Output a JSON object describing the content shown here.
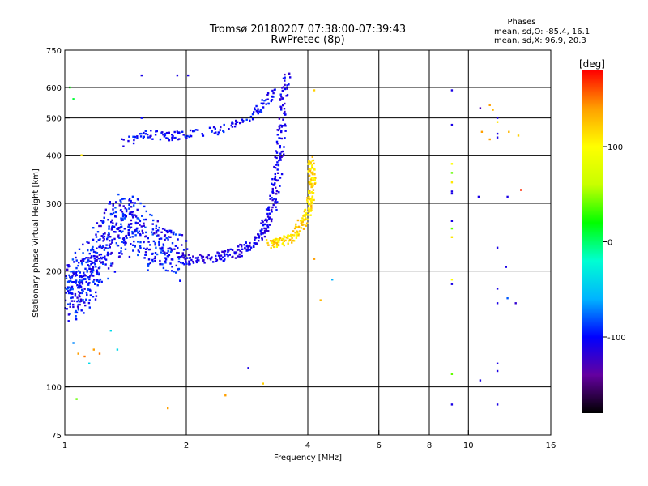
{
  "chart_data": {
    "type": "scatter",
    "title": "Tromsø 20180207 07:38:00-07:39:43",
    "subtitle": "RwPretec (8p)",
    "xlabel": "Frequency [MHz]",
    "ylabel": "Stationary phase Virtual Height [km]",
    "xscale": "log",
    "yscale": "log",
    "xlim": [
      1,
      16
    ],
    "ylim": [
      75,
      750
    ],
    "x_ticks": [
      1,
      2,
      4,
      6,
      8,
      10,
      16
    ],
    "x_tick_labels": [
      "1",
      "2",
      "4",
      "6",
      "8",
      "10",
      "16"
    ],
    "x_gridlines": [
      2,
      4,
      6,
      8,
      10
    ],
    "y_ticks": [
      75,
      100,
      200,
      300,
      400,
      500,
      600,
      750
    ],
    "y_tick_labels": [
      "75",
      "100",
      "200",
      "300",
      "400",
      "500",
      "600",
      "750"
    ],
    "y_gridlines": [
      100,
      200,
      300,
      400,
      500,
      600
    ],
    "grid": true,
    "phases_box": {
      "title": "Phases",
      "line1": "mean, sd,O:  -85.4, 16.1",
      "line2": "mean, sd,X:  96.9, 20.3"
    },
    "colorbar": {
      "label": "[deg]",
      "range": [
        -180,
        180
      ],
      "ticks": [
        -100,
        0,
        100
      ],
      "tick_labels": [
        "-100",
        "0",
        "100"
      ],
      "colors": [
        "#000000",
        "#6400a0",
        "#0000ff",
        "#00b4ff",
        "#00ffd2",
        "#00ff00",
        "#c8ff00",
        "#ffff00",
        "#ffa000",
        "#ff0000"
      ]
    },
    "o_trace": [
      [
        1.02,
        170
      ],
      [
        1.05,
        175
      ],
      [
        1.08,
        180
      ],
      [
        1.1,
        188
      ],
      [
        1.13,
        195
      ],
      [
        1.16,
        205
      ],
      [
        1.2,
        215
      ],
      [
        1.25,
        228
      ],
      [
        1.3,
        245
      ],
      [
        1.35,
        265
      ],
      [
        1.4,
        280
      ],
      [
        1.45,
        272
      ],
      [
        1.5,
        258
      ],
      [
        1.6,
        242
      ],
      [
        1.7,
        230
      ],
      [
        1.8,
        222
      ],
      [
        1.9,
        217
      ],
      [
        2.0,
        214
      ],
      [
        2.2,
        215
      ],
      [
        2.4,
        218
      ],
      [
        2.6,
        222
      ],
      [
        2.8,
        230
      ],
      [
        3.0,
        242
      ],
      [
        3.1,
        255
      ],
      [
        3.2,
        275
      ],
      [
        3.3,
        305
      ],
      [
        3.35,
        345
      ],
      [
        3.4,
        400
      ],
      [
        3.45,
        470
      ],
      [
        3.5,
        560
      ],
      [
        3.55,
        640
      ]
    ],
    "x_trace": [
      [
        3.2,
        235
      ],
      [
        3.4,
        237
      ],
      [
        3.6,
        243
      ],
      [
        3.8,
        258
      ],
      [
        3.95,
        275
      ],
      [
        4.05,
        300
      ],
      [
        4.1,
        330
      ],
      [
        4.1,
        360
      ],
      [
        4.05,
        390
      ]
    ],
    "upper_band": [
      [
        1.4,
        430
      ],
      [
        1.5,
        445
      ],
      [
        1.6,
        455
      ],
      [
        1.7,
        450
      ],
      [
        1.8,
        448
      ],
      [
        1.9,
        450
      ],
      [
        2.0,
        452
      ],
      [
        2.1,
        458
      ],
      [
        2.4,
        465
      ],
      [
        2.6,
        480
      ],
      [
        2.8,
        495
      ],
      [
        3.0,
        520
      ],
      [
        3.1,
        545
      ],
      [
        3.2,
        560
      ],
      [
        3.3,
        600
      ]
    ],
    "scattered_points": [
      [
        1.55,
        645,
        -110
      ],
      [
        1.9,
        645,
        -110
      ],
      [
        2.02,
        645,
        -110
      ],
      [
        1.55,
        500,
        -100
      ],
      [
        1.05,
        560,
        10
      ],
      [
        1.03,
        600,
        20
      ],
      [
        1.1,
        400,
        110
      ],
      [
        1.05,
        130,
        -70
      ],
      [
        1.08,
        122,
        140
      ],
      [
        1.12,
        120,
        150
      ],
      [
        1.15,
        115,
        -40
      ],
      [
        1.18,
        125,
        140
      ],
      [
        1.22,
        122,
        150
      ],
      [
        1.3,
        140,
        -40
      ],
      [
        1.35,
        125,
        -40
      ],
      [
        1.07,
        93,
        40
      ],
      [
        1.8,
        88,
        140
      ],
      [
        2.5,
        95,
        140
      ],
      [
        2.85,
        112,
        -110
      ],
      [
        3.1,
        102,
        120
      ],
      [
        4.15,
        590,
        120
      ],
      [
        4.15,
        215,
        140
      ],
      [
        4.3,
        168,
        130
      ],
      [
        4.6,
        190,
        -60
      ],
      [
        9.1,
        590,
        -110
      ],
      [
        9.1,
        480,
        -110
      ],
      [
        9.1,
        380,
        100
      ],
      [
        9.1,
        360,
        40
      ],
      [
        9.1,
        340,
        110
      ],
      [
        9.1,
        322,
        -110
      ],
      [
        9.1,
        318,
        -110
      ],
      [
        9.1,
        270,
        -110
      ],
      [
        9.1,
        258,
        40
      ],
      [
        9.1,
        245,
        110
      ],
      [
        9.1,
        190,
        100
      ],
      [
        9.1,
        185,
        -110
      ],
      [
        9.1,
        108,
        40
      ],
      [
        9.1,
        90,
        -110
      ],
      [
        10.7,
        530,
        -130
      ],
      [
        11.3,
        540,
        140
      ],
      [
        11.5,
        525,
        130
      ],
      [
        11.8,
        500,
        -110
      ],
      [
        11.8,
        488,
        110
      ],
      [
        10.8,
        460,
        140
      ],
      [
        11.3,
        440,
        140
      ],
      [
        11.8,
        455,
        -110
      ],
      [
        11.8,
        445,
        -110
      ],
      [
        12.6,
        460,
        130
      ],
      [
        13.3,
        450,
        120
      ],
      [
        10.6,
        312,
        -110
      ],
      [
        12.5,
        312,
        -110
      ],
      [
        13.5,
        325,
        170
      ],
      [
        11.8,
        230,
        -110
      ],
      [
        12.4,
        205,
        -110
      ],
      [
        11.8,
        180,
        -110
      ],
      [
        12.5,
        170,
        -80
      ],
      [
        11.8,
        165,
        -110
      ],
      [
        13.1,
        165,
        -120
      ],
      [
        11.8,
        115,
        -110
      ],
      [
        11.8,
        110,
        -110
      ],
      [
        10.7,
        104,
        -110
      ],
      [
        11.8,
        90,
        -110
      ]
    ]
  }
}
